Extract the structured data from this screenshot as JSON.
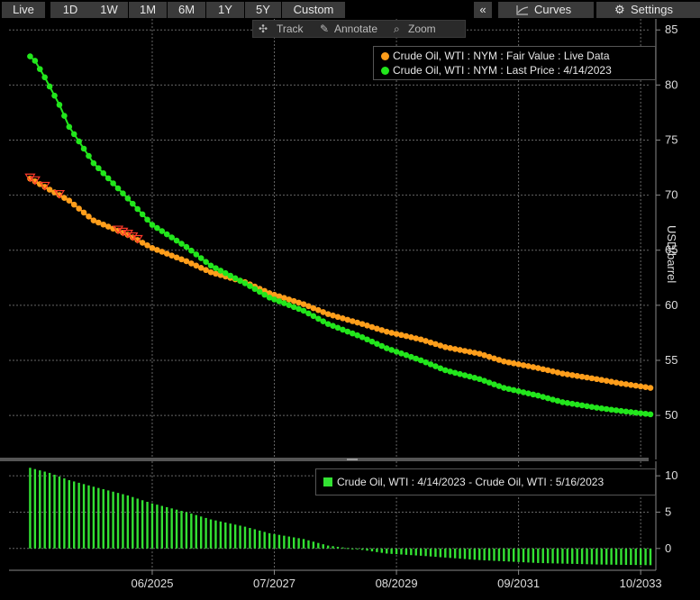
{
  "toolbar": {
    "tabs": [
      "Live",
      "1D",
      "1W",
      "1M",
      "6M",
      "1Y",
      "5Y",
      "Custom"
    ],
    "active_tabs": [
      "Live",
      "1M"
    ],
    "collapse_label": "«",
    "curves_label": "Curves",
    "settings_label": "Settings",
    "tools": {
      "track": "Track",
      "annotate": "Annotate",
      "zoom": "Zoom"
    }
  },
  "colors": {
    "fair_value": "#ff9e1b",
    "last_price": "#22e61c",
    "difference": "#33e233",
    "marker": "#ff3a2a"
  },
  "chart_data": [
    {
      "type": "line",
      "ylabel": "USD/barrel",
      "ylim": [
        46,
        86
      ],
      "y_ticks": [
        50,
        55,
        60,
        65,
        70,
        75,
        80,
        85
      ],
      "x_tick_labels": [
        "06/2025",
        "07/2027",
        "08/2029",
        "09/2031",
        "10/2033"
      ],
      "x_range": [
        "2023-05",
        "2033-12"
      ],
      "grid": true,
      "legend_position": "top-right",
      "series": [
        {
          "name": "Crude Oil, WTI : NYM : Fair Value : Live Data",
          "x": [
            "2023-05",
            "2024-01",
            "2024-06",
            "2025-01",
            "2025-06",
            "2026-01",
            "2026-06",
            "2027-01",
            "2027-06",
            "2028-01",
            "2028-06",
            "2029-01",
            "2029-06",
            "2030-01",
            "2030-06",
            "2031-01",
            "2031-06",
            "2032-01",
            "2032-06",
            "2033-01",
            "2033-06",
            "2033-12"
          ],
          "y": [
            71.5,
            69.5,
            67.7,
            66.4,
            65.2,
            64.0,
            63.0,
            62.1,
            61.1,
            60.1,
            59.2,
            58.3,
            57.6,
            56.9,
            56.2,
            55.6,
            54.9,
            54.3,
            53.8,
            53.3,
            52.9,
            52.5
          ]
        },
        {
          "name": "Crude Oil, WTI : NYM : Last Price : 4/14/2023",
          "x": [
            "2023-05",
            "2023-06",
            "2023-08",
            "2023-11",
            "2024-01",
            "2024-06",
            "2025-01",
            "2025-06",
            "2026-01",
            "2026-06",
            "2027-01",
            "2027-06",
            "2028-01",
            "2028-06",
            "2029-01",
            "2029-06",
            "2030-01",
            "2030-06",
            "2031-01",
            "2031-06",
            "2032-01",
            "2032-06",
            "2033-01",
            "2033-06",
            "2033-12"
          ],
          "y": [
            82.6,
            82.2,
            80.7,
            78.2,
            76.2,
            72.9,
            69.7,
            67.3,
            65.3,
            63.6,
            62.0,
            60.7,
            59.5,
            58.3,
            57.1,
            56.1,
            55.0,
            54.1,
            53.3,
            52.5,
            51.8,
            51.2,
            50.7,
            50.4,
            50.1
          ]
        }
      ],
      "markers_on": "Crude Oil, WTI : NYM : Fair Value : Live Data",
      "marker_x": [
        "2023-05",
        "2023-06",
        "2023-08",
        "2023-11",
        "2024-11",
        "2024-12",
        "2025-01",
        "2025-02",
        "2025-03"
      ]
    },
    {
      "type": "bar",
      "ylim": [
        -3,
        12
      ],
      "y_ticks": [
        0,
        5,
        10
      ],
      "series": [
        {
          "name": "Crude Oil, WTI : 4/14/2023 - Crude Oil, WTI : 5/16/2023",
          "x_range": [
            "2023-05",
            "2033-12"
          ],
          "x": [
            "2023-05",
            "2023-09",
            "2024-01",
            "2024-06",
            "2025-01",
            "2025-06",
            "2026-01",
            "2026-06",
            "2027-01",
            "2027-06",
            "2028-01",
            "2028-06",
            "2029-01",
            "2029-06",
            "2030-01",
            "2031-01",
            "2032-01",
            "2033-01",
            "2033-12"
          ],
          "y": [
            11.1,
            10.4,
            9.4,
            8.5,
            7.3,
            6.2,
            5.0,
            4.0,
            3.0,
            2.1,
            1.3,
            0.4,
            -0.2,
            -0.7,
            -1.0,
            -1.6,
            -2.0,
            -2.2,
            -2.3
          ]
        }
      ]
    }
  ]
}
